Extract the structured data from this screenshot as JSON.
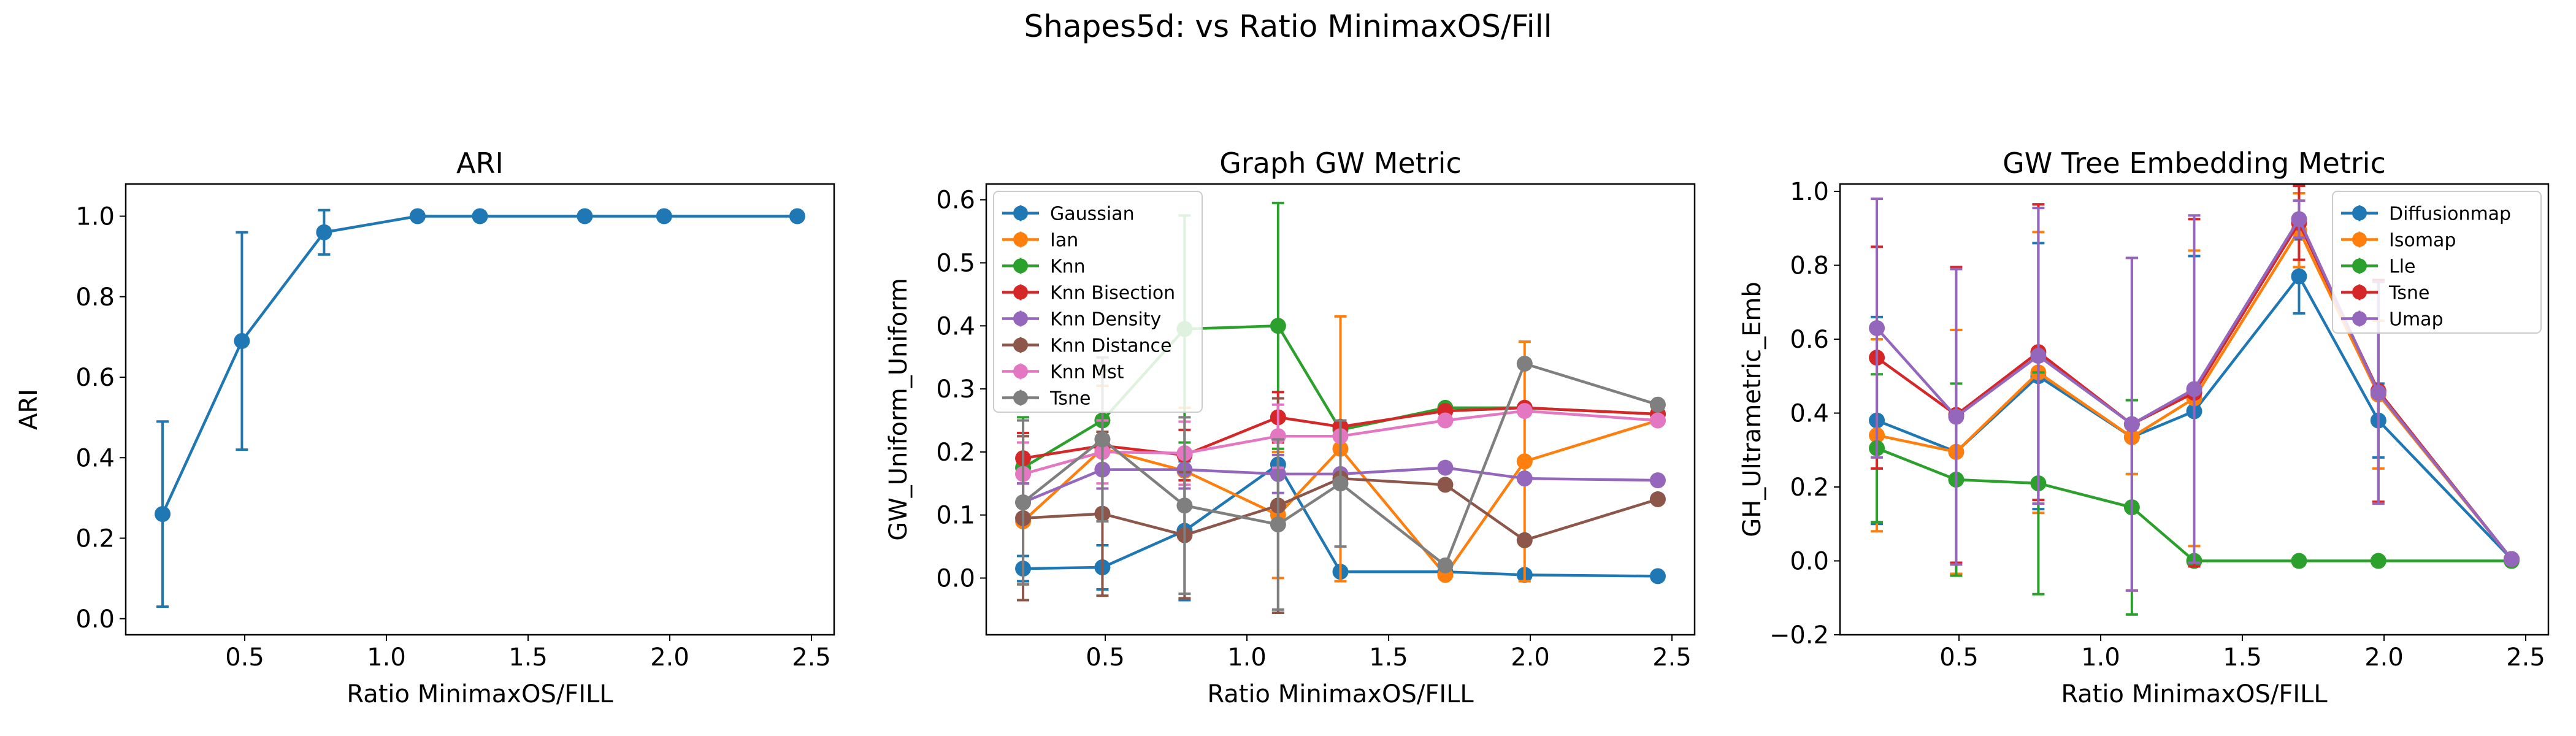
{
  "suptitle": "Shapes5d: vs Ratio MinimaxOS/Fill",
  "chart_data": [
    {
      "type": "line",
      "title": "ARI",
      "xlabel": "Ratio MinimaxOS/FILL",
      "ylabel": "ARI",
      "xlim": [
        0.08,
        2.58
      ],
      "ylim": [
        -0.04,
        1.08
      ],
      "xticks": [
        0.5,
        1.0,
        1.5,
        2.0,
        2.5
      ],
      "xtick_labels": [
        "0.5",
        "1.0",
        "1.5",
        "2.0",
        "2.5"
      ],
      "yticks": [
        0.0,
        0.2,
        0.4,
        0.6,
        0.8,
        1.0
      ],
      "ytick_labels": [
        "0.0",
        "0.2",
        "0.4",
        "0.6",
        "0.8",
        "1.0"
      ],
      "legend": null,
      "series": [
        {
          "name": "",
          "color": "#1f77b4",
          "x": [
            0.21,
            0.49,
            0.78,
            1.11,
            1.33,
            1.7,
            1.98,
            2.45
          ],
          "y": [
            0.26,
            0.69,
            0.96,
            1.0,
            1.0,
            1.0,
            1.0,
            1.0
          ],
          "err": [
            0.23,
            0.27,
            0.055,
            0,
            0,
            0,
            0,
            0
          ]
        }
      ]
    },
    {
      "type": "line",
      "title": "Graph GW Metric",
      "xlabel": "Ratio MinimaxOS/FILL",
      "ylabel": "GW_Uniform_Uniform",
      "xlim": [
        0.08,
        2.58
      ],
      "ylim": [
        -0.09,
        0.625
      ],
      "xticks": [
        0.5,
        1.0,
        1.5,
        2.0,
        2.5
      ],
      "xtick_labels": [
        "0.5",
        "1.0",
        "1.5",
        "2.0",
        "2.5"
      ],
      "yticks": [
        0.0,
        0.1,
        0.2,
        0.3,
        0.4,
        0.5,
        0.6
      ],
      "ytick_labels": [
        "0.0",
        "0.1",
        "0.2",
        "0.3",
        "0.4",
        "0.5",
        "0.6"
      ],
      "legend": "upper-left",
      "series": [
        {
          "name": "Gaussian",
          "color": "#1f77b4",
          "x": [
            0.21,
            0.49,
            0.78,
            1.11,
            1.33,
            1.7,
            1.98,
            2.45
          ],
          "y": [
            0.015,
            0.017,
            0.075,
            0.18,
            0.01,
            0.01,
            0.005,
            0.003
          ],
          "err": [
            0.02,
            0.035,
            0.11,
            0.0,
            0.0,
            0.0,
            0.0,
            0.0
          ]
        },
        {
          "name": "Ian",
          "color": "#ff7f0e",
          "x": [
            0.21,
            0.49,
            0.78,
            1.11,
            1.33,
            1.7,
            1.98,
            2.45
          ],
          "y": [
            0.09,
            0.205,
            0.17,
            0.1,
            0.205,
            0.005,
            0.185,
            0.25
          ],
          "err": [
            0.1,
            0.1,
            0.1,
            0.1,
            0.21,
            0.0,
            0.19,
            0.0
          ]
        },
        {
          "name": "Knn",
          "color": "#2ca02c",
          "x": [
            0.21,
            0.49,
            0.78,
            1.11,
            1.33,
            1.7,
            1.98,
            2.45
          ],
          "y": [
            0.175,
            0.25,
            0.395,
            0.4,
            0.235,
            0.27,
            0.27,
            0.26
          ],
          "err": [
            0.08,
            0.08,
            0.18,
            0.195,
            0.0,
            0.0,
            0.0,
            0.0
          ]
        },
        {
          "name": "Knn Bisection",
          "color": "#d62728",
          "x": [
            0.21,
            0.49,
            0.78,
            1.11,
            1.33,
            1.7,
            1.98,
            2.45
          ],
          "y": [
            0.19,
            0.21,
            0.195,
            0.255,
            0.24,
            0.265,
            0.27,
            0.26
          ],
          "err": [
            0.04,
            0.04,
            0.04,
            0.04,
            0.0,
            0.0,
            0.0,
            0.0
          ]
        },
        {
          "name": "Knn Density",
          "color": "#9467bd",
          "x": [
            0.21,
            0.49,
            0.78,
            1.11,
            1.33,
            1.7,
            1.98,
            2.45
          ],
          "y": [
            0.12,
            0.172,
            0.172,
            0.165,
            0.165,
            0.175,
            0.158,
            0.155
          ],
          "err": [
            0.03,
            0.03,
            0.03,
            0.03,
            0.0,
            0.0,
            0.0,
            0.0
          ]
        },
        {
          "name": "Knn Distance",
          "color": "#8c564b",
          "x": [
            0.21,
            0.49,
            0.78,
            1.11,
            1.33,
            1.7,
            1.98,
            2.45
          ],
          "y": [
            0.095,
            0.102,
            0.068,
            0.115,
            0.158,
            0.148,
            0.06,
            0.125
          ],
          "err": [
            0.13,
            0.13,
            0.1,
            0.17,
            0.0,
            0.0,
            0.0,
            0.0
          ]
        },
        {
          "name": "Knn Mst",
          "color": "#e377c2",
          "x": [
            0.21,
            0.49,
            0.78,
            1.11,
            1.33,
            1.7,
            1.98,
            2.45
          ],
          "y": [
            0.165,
            0.2,
            0.198,
            0.225,
            0.225,
            0.25,
            0.265,
            0.25
          ],
          "err": [
            0.05,
            0.05,
            0.05,
            0.05,
            0.0,
            0.0,
            0.0,
            0.0
          ]
        },
        {
          "name": "Tsne",
          "color": "#7f7f7f",
          "x": [
            0.21,
            0.49,
            0.78,
            1.11,
            1.33,
            1.7,
            1.98,
            2.45
          ],
          "y": [
            0.12,
            0.22,
            0.115,
            0.085,
            0.15,
            0.02,
            0.34,
            0.275
          ],
          "err": [
            0.13,
            0.13,
            0.14,
            0.135,
            0.1,
            0.0,
            0.0,
            0.0
          ]
        }
      ]
    },
    {
      "type": "line",
      "title": "GW Tree Embedding Metric",
      "xlabel": "Ratio MinimaxOS/FILL",
      "ylabel": "GH_Ultrametric_Emb",
      "xlim": [
        0.08,
        2.58
      ],
      "ylim": [
        -0.2,
        1.02
      ],
      "xticks": [
        0.5,
        1.0,
        1.5,
        2.0,
        2.5
      ],
      "xtick_labels": [
        "0.5",
        "1.0",
        "1.5",
        "2.0",
        "2.5"
      ],
      "yticks": [
        -0.2,
        0.0,
        0.2,
        0.4,
        0.6,
        0.8,
        1.0
      ],
      "ytick_labels": [
        "−0.2",
        "0.0",
        "0.2",
        "0.4",
        "0.6",
        "0.8",
        "1.0"
      ],
      "legend": "upper-right",
      "series": [
        {
          "name": "Diffusionmap",
          "color": "#1f77b4",
          "x": [
            0.21,
            0.49,
            0.78,
            1.11,
            1.33,
            1.7,
            1.98,
            2.45
          ],
          "y": [
            0.38,
            0.295,
            0.5,
            0.335,
            0.405,
            0.77,
            0.38,
            0.005
          ],
          "err": [
            0.28,
            0.33,
            0.36,
            0.1,
            0.42,
            0.1,
            0.1,
            0.0
          ]
        },
        {
          "name": "Isomap",
          "color": "#ff7f0e",
          "x": [
            0.21,
            0.49,
            0.78,
            1.11,
            1.33,
            1.7,
            1.98,
            2.45
          ],
          "y": [
            0.34,
            0.295,
            0.51,
            0.335,
            0.44,
            0.895,
            0.45,
            0.005
          ],
          "err": [
            0.26,
            0.33,
            0.38,
            0.1,
            0.4,
            0.1,
            0.2,
            0.0
          ]
        },
        {
          "name": "Lle",
          "color": "#2ca02c",
          "x": [
            0.21,
            0.49,
            0.78,
            1.11,
            1.33,
            1.7,
            1.98,
            2.45
          ],
          "y": [
            0.305,
            0.22,
            0.21,
            0.145,
            0.0,
            0.0,
            0.0,
            0.0
          ],
          "err": [
            0.2,
            0.26,
            0.3,
            0.29,
            0.0,
            0.0,
            0.0,
            0.0
          ]
        },
        {
          "name": "Tsne",
          "color": "#d62728",
          "x": [
            0.21,
            0.49,
            0.78,
            1.11,
            1.33,
            1.7,
            1.98,
            2.45
          ],
          "y": [
            0.55,
            0.395,
            0.565,
            0.37,
            0.455,
            0.915,
            0.46,
            0.005
          ],
          "err": [
            0.3,
            0.4,
            0.4,
            0.45,
            0.47,
            0.1,
            0.3,
            0.0
          ]
        },
        {
          "name": "Umap",
          "color": "#9467bd",
          "x": [
            0.21,
            0.49,
            0.78,
            1.11,
            1.33,
            1.7,
            1.98,
            2.45
          ],
          "y": [
            0.63,
            0.39,
            0.555,
            0.37,
            0.465,
            0.925,
            0.455,
            0.005
          ],
          "err": [
            0.35,
            0.4,
            0.4,
            0.45,
            0.47,
            0.05,
            0.3,
            0.0
          ]
        }
      ]
    }
  ]
}
